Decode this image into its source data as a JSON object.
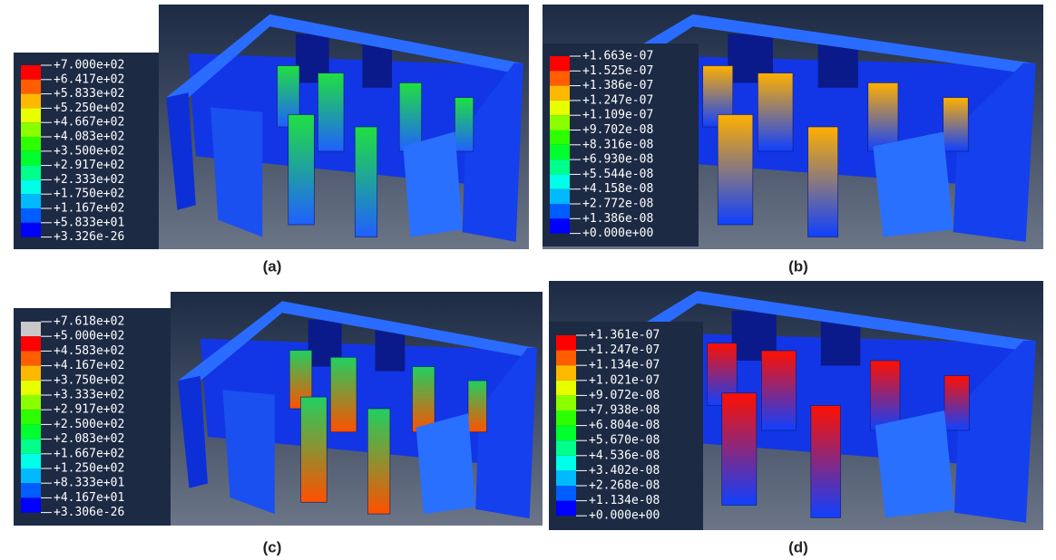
{
  "panels": [
    {
      "label": "(a)",
      "legend": [
        "+7.000e+02",
        "+6.417e+02",
        "+5.833e+02",
        "+5.250e+02",
        "+4.667e+02",
        "+4.083e+02",
        "+3.500e+02",
        "+2.917e+02",
        "+2.333e+02",
        "+1.750e+02",
        "+1.167e+02",
        "+5.833e+01",
        "+3.326e-26"
      ]
    },
    {
      "label": "(b)",
      "legend": [
        "+1.663e-07",
        "+1.525e-07",
        "+1.386e-07",
        "+1.247e-07",
        "+1.109e-07",
        "+9.702e-08",
        "+8.316e-08",
        "+6.930e-08",
        "+5.544e-08",
        "+4.158e-08",
        "+2.772e-08",
        "+1.386e-08",
        "+0.000e+00"
      ]
    },
    {
      "label": "(c)",
      "legend": [
        "+7.618e+02",
        "+5.000e+02",
        "+4.583e+02",
        "+4.167e+02",
        "+3.750e+02",
        "+3.333e+02",
        "+2.917e+02",
        "+2.500e+02",
        "+2.083e+02",
        "+1.667e+02",
        "+1.250e+02",
        "+8.333e+01",
        "+4.167e+01",
        "+3.306e-26"
      ]
    },
    {
      "label": "(d)",
      "legend": [
        "+1.361e-07",
        "+1.247e-07",
        "+1.134e-07",
        "+1.021e-07",
        "+9.072e-08",
        "+7.938e-08",
        "+6.804e-08",
        "+5.670e-08",
        "+4.536e-08",
        "+3.402e-08",
        "+2.268e-08",
        "+1.134e-08",
        "+0.000e+00"
      ]
    }
  ]
}
